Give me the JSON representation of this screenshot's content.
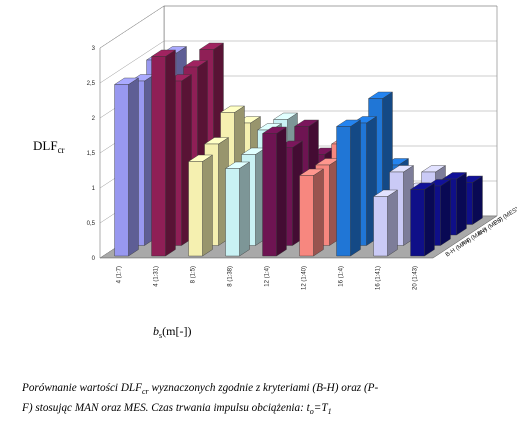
{
  "chart_data": {
    "type": "bar",
    "subtype": "3d-grouped",
    "categories": [
      "4 (1:7)",
      "4 (1:31)",
      "8 (1:5)",
      "8 (1:38)",
      "12 (1:4)",
      "12 (1:40)",
      "16 (1:4)",
      "16 (1:41)",
      "20 (1:43)"
    ],
    "series": [
      {
        "name": "B-H (MAN)",
        "color": "#5d2240",
        "values": [
          2.45,
          2.85,
          1.35,
          1.25,
          1.75,
          1.15,
          1.85,
          0.85,
          0.95
        ]
      },
      {
        "name": "P-F (MAN)",
        "color": "#cfd0a6",
        "values": [
          2.35,
          2.35,
          1.45,
          1.3,
          1.4,
          1.15,
          1.75,
          1.05,
          0.85
        ]
      },
      {
        "name": "B-H (MES)",
        "color": "#3a3a8e",
        "values": [
          2.5,
          2.4,
          1.75,
          1.5,
          1.55,
          1.3,
          1.95,
          0.65,
          0.8
        ]
      },
      {
        "name": "P-F (MES)",
        "color": "#6f2a55",
        "values": [
          2.45,
          2.5,
          1.45,
          1.5,
          1.0,
          0.95,
          0.85,
          0.75,
          0.6
        ]
      }
    ],
    "category_colors": [
      "#9898f0",
      "#8f1f56",
      "#f5f0b0",
      "#c9f2f4",
      "#6e1452",
      "#f7877f",
      "#2076d6",
      "#cacaf6",
      "#0f0f88"
    ],
    "ylim": [
      0,
      3
    ],
    "yticks": [
      "0",
      "0,5",
      "1",
      "1,5",
      "2",
      "2,5",
      "3"
    ],
    "grid": true,
    "ylabel": {
      "main": "DLF",
      "sub": "cr"
    },
    "xlabel": {
      "main": "b",
      "sub": "s",
      "rest": "(m[-])"
    }
  },
  "caption": {
    "line1_pre": "Porównanie wartości DLF",
    "line1_sub": "cr",
    "line1_post": " wyznaczonych zgodnie z kryteriami (B-H) oraz (P-",
    "line2_pre": "F) stosując MAN oraz MES. Czas trwania impulsu obciążenia:  ",
    "t": "t",
    "t_sub": "o",
    "eq": "=T",
    "T_sub": "1"
  }
}
